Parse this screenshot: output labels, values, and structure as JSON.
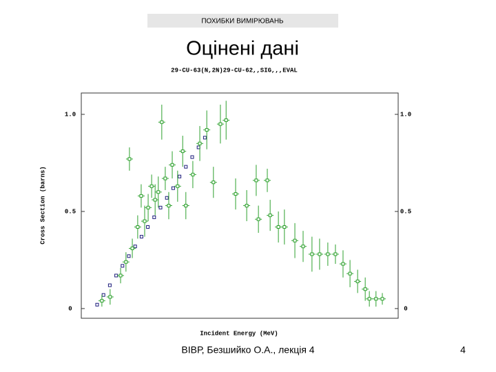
{
  "header": {
    "banner": "ПОХИБКИ ВИМІРЮВАНЬ",
    "title": "Оцінені дані"
  },
  "footer": {
    "text": "ВІВР, Безшийко О.А., лекція 4",
    "page": "4"
  },
  "chart_data": {
    "type": "scatter",
    "title": "29-CU-63(N,2N)29-CU-62,,SIG,,,EVAL",
    "x_label": "Incident Energy (MeV)",
    "y_label": "Cross Section (barns)",
    "xlim": [
      0,
      100
    ],
    "ylim": [
      -0.05,
      1.11
    ],
    "yticks": [
      0,
      0.5,
      {
        "value": 1,
        "label": "1.0"
      }
    ],
    "series": [
      {
        "color": "#1a1a7a",
        "x": [
          5,
          7,
          9,
          11,
          13,
          15,
          17,
          19,
          21,
          23,
          25,
          27,
          29,
          31,
          33,
          35,
          37,
          39
        ],
        "values": [
          0.02,
          0.07,
          0.12,
          0.17,
          0.22,
          0.27,
          0.32,
          0.37,
          0.42,
          0.47,
          0.52,
          0.57,
          0.62,
          0.68,
          0.73,
          0.78,
          0.83,
          0.88
        ]
      },
      {
        "color": "#2ca02c",
        "x": [
          6.5,
          9.1,
          12.4,
          14.1,
          16.1,
          15.2,
          17.8,
          18.9,
          20,
          21.1,
          22.2,
          23.3,
          24.3,
          25.4,
          26.5,
          27.6,
          28.7,
          30.4,
          32,
          33,
          35.2,
          37.4,
          39.6,
          41.7,
          43.9,
          45.7,
          48.7,
          52.2,
          55.2,
          58.7,
          55.9,
          59.6,
          62.2,
          64.1,
          67.4,
          70,
          72.8,
          75.2,
          77.8,
          80.2,
          82.6,
          84.8,
          87.2,
          89.6,
          90.9,
          93,
          95
        ],
        "values": [
          0.04,
          0.06,
          0.17,
          0.24,
          0.31,
          0.77,
          0.42,
          0.58,
          0.45,
          0.52,
          0.63,
          0.56,
          0.6,
          0.96,
          0.67,
          0.53,
          0.74,
          0.63,
          0.81,
          0.53,
          0.69,
          0.85,
          0.92,
          0.65,
          0.95,
          0.97,
          0.59,
          0.53,
          0.66,
          0.66,
          0.46,
          0.48,
          0.42,
          0.42,
          0.35,
          0.32,
          0.28,
          0.28,
          0.28,
          0.28,
          0.23,
          0.18,
          0.14,
          0.1,
          0.05,
          0.05,
          0.05
        ],
        "errors": [
          0.03,
          0.04,
          0.04,
          0.05,
          0.05,
          0.06,
          0.06,
          0.06,
          0.08,
          0.07,
          0.06,
          0.08,
          0.08,
          0.09,
          0.06,
          0.07,
          0.07,
          0.08,
          0.08,
          0.07,
          0.07,
          0.09,
          0.1,
          0.08,
          0.1,
          0.1,
          0.08,
          0.08,
          0.08,
          0.06,
          0.07,
          0.08,
          0.08,
          0.09,
          0.09,
          0.08,
          0.09,
          0.08,
          0.06,
          0.05,
          0.07,
          0.07,
          0.06,
          0.06,
          0.04,
          0.04,
          0.03
        ]
      }
    ]
  }
}
